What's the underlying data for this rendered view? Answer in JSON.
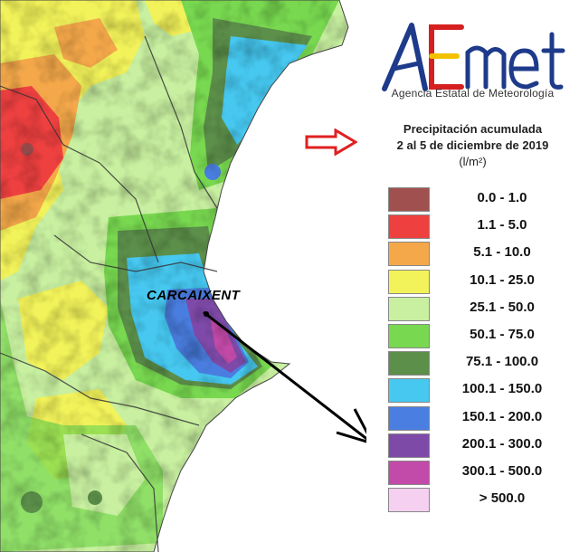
{
  "brand": {
    "logo_text": "AEmet",
    "agency": "Agencia Estatal de Meteorología"
  },
  "title": {
    "line1": "Precipitación acumulada",
    "line2": "2 al 5 de diciembre de 2019",
    "unit": "(l/m²)"
  },
  "map": {
    "city_label": "CARCAIXENT"
  },
  "legend": [
    {
      "label": "0.0 - 1.0",
      "color": "#a0504f"
    },
    {
      "label": "1.1 - 5.0",
      "color": "#ef4040"
    },
    {
      "label": "5.1 - 10.0",
      "color": "#f4a84a"
    },
    {
      "label": "10.1 - 25.0",
      "color": "#f2f25a"
    },
    {
      "label": "25.1 - 50.0",
      "color": "#c8f0a0"
    },
    {
      "label": "50.1 - 75.0",
      "color": "#78d850"
    },
    {
      "label": "75.1 - 100.0",
      "color": "#5c8f4a"
    },
    {
      "label": "100.1 - 150.0",
      "color": "#46c8f0"
    },
    {
      "label": "150.1 - 200.0",
      "color": "#4a7ee0"
    },
    {
      "label": "200.1 - 300.0",
      "color": "#7e4aa8"
    },
    {
      "label": "300.1 - 500.0",
      "color": "#c24aa8"
    },
    {
      "label": "> 500.0",
      "color": "#f5d0f0"
    }
  ],
  "colors": {
    "sea": "#ffffff",
    "logo_blue": "#1e3a8a",
    "logo_red": "#d62020",
    "logo_yellow": "#f2c200",
    "arrow_red": "#e02020"
  }
}
